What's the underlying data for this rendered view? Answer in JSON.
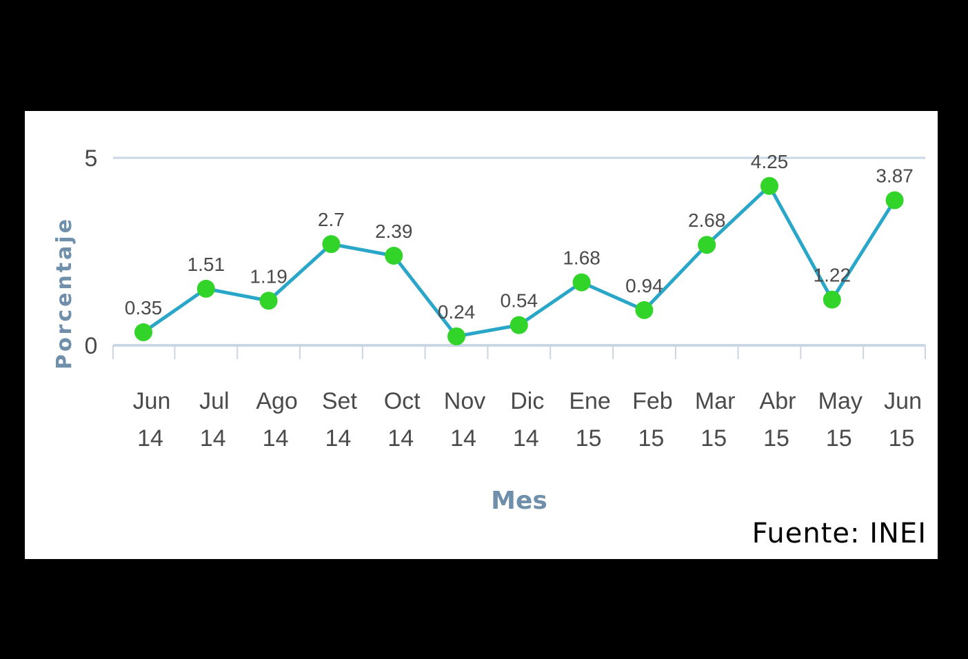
{
  "chart_data": {
    "type": "line",
    "categories": [
      [
        "Jun",
        "14"
      ],
      [
        "Jul",
        "14"
      ],
      [
        "Ago",
        "14"
      ],
      [
        "Set",
        "14"
      ],
      [
        "Oct",
        "14"
      ],
      [
        "Nov",
        "14"
      ],
      [
        "Dic",
        "14"
      ],
      [
        "Ene",
        "15"
      ],
      [
        "Feb",
        "15"
      ],
      [
        "Mar",
        "15"
      ],
      [
        "Abr",
        "15"
      ],
      [
        "May",
        "15"
      ],
      [
        "Jun",
        "15"
      ]
    ],
    "values": [
      0.35,
      1.51,
      1.19,
      2.7,
      2.39,
      0.24,
      0.54,
      1.68,
      0.94,
      2.68,
      4.25,
      1.22,
      3.87
    ],
    "data_labels": [
      "0.35",
      "1.51",
      "1.19",
      "2.7",
      "2.39",
      "0.24",
      "0.54",
      "1.68",
      "0.94",
      "2.68",
      "4.25",
      "1.22",
      "3.87"
    ],
    "xlabel": "Mes",
    "ylabel": "Porcentaje",
    "ylim": [
      0,
      5
    ],
    "yticks": [
      "0",
      "5"
    ],
    "grid": true,
    "legend": "none",
    "line_color": "#2aa6c8",
    "marker_color": "#33d42a",
    "axis_color": "#c9d6e3",
    "title_color": "#6f8faa"
  },
  "source": "Fuente: INEI"
}
